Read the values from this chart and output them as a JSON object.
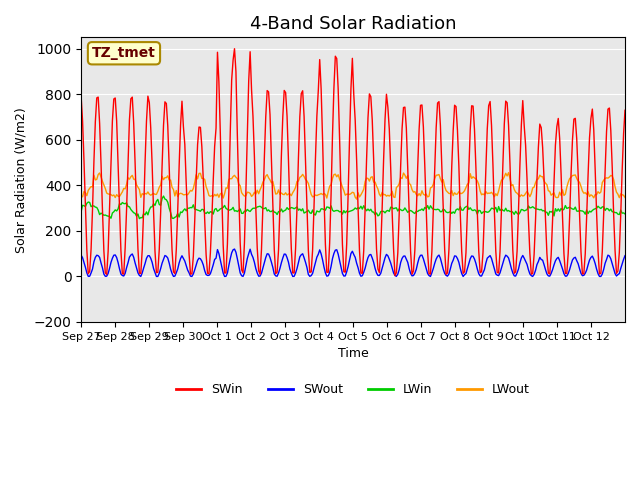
{
  "title": "4-Band Solar Radiation",
  "ylabel": "Solar Radiation (W/m2)",
  "xlabel": "Time",
  "annotation": "TZ_tmet",
  "ylim": [
    -200,
    1050
  ],
  "yticks": [
    -200,
    0,
    200,
    400,
    600,
    800,
    1000
  ],
  "legend_labels": [
    "SWin",
    "SWout",
    "LWin",
    "LWout"
  ],
  "line_colors": {
    "SWin": "#ff0000",
    "SWout": "#0000ff",
    "LWin": "#00cc00",
    "LWout": "#ff9900"
  },
  "xtick_labels": [
    "Sep 27",
    "Sep 28",
    "Sep 29",
    "Sep 30",
    "Oct 1",
    "Oct 2",
    "Oct 3",
    "Oct 4",
    "Oct 5",
    "Oct 6",
    "Oct 7",
    "Oct 8",
    "Oct 9",
    "Oct 10",
    "Oct 11",
    "Oct 12"
  ],
  "plot_bg_color": "#e8e8e8",
  "title_fontsize": 13,
  "annotation_fontsize": 10
}
